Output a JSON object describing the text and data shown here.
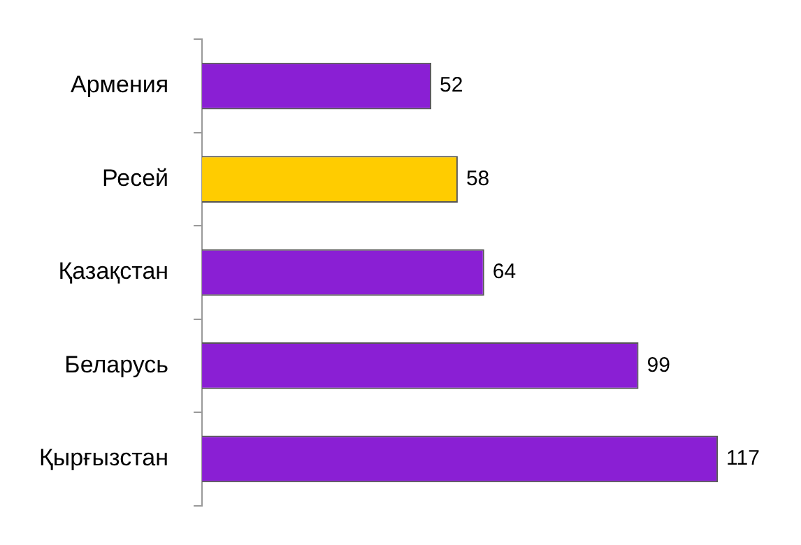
{
  "chart_data": {
    "type": "bar",
    "orientation": "horizontal",
    "categories": [
      "Армения",
      "Ресей",
      "Қазақстан",
      "Беларусь",
      "Қырғызстан"
    ],
    "values": [
      52,
      58,
      64,
      99,
      117
    ],
    "colors": [
      "#8a1fd4",
      "#ffcc00",
      "#8a1fd4",
      "#8a1fd4",
      "#8a1fd4"
    ],
    "data_labels": true,
    "tick_labels": "y"
  }
}
